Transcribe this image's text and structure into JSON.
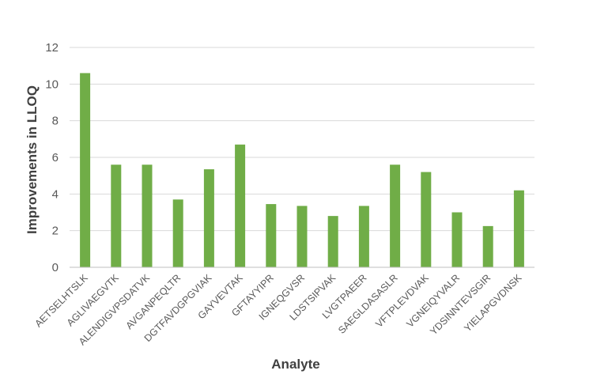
{
  "chart_data": {
    "type": "bar",
    "title": "",
    "xlabel": "Analyte",
    "ylabel": "Improvements in LLOQ",
    "ylim": [
      0,
      12
    ],
    "yticks": [
      0,
      2,
      4,
      6,
      8,
      10,
      12
    ],
    "grid": true,
    "legend": "none",
    "bar_color": "#70ad47",
    "categories": [
      "AETSELHTSLK",
      "AGLIVAEGVTK",
      "ALENDIGVPSDATVK",
      "AVGANPEQLTR",
      "DGTFAVDGPGVIAK",
      "GAYVEVTAK",
      "GFTAYYIPR",
      "IGNEQGVSR",
      "LDSTSIPVAK",
      "LVGTPAEER",
      "SAEGLDASASLR",
      "VFTPLEVDVAK",
      "VGNEIQYVALR",
      "YDSINNTEVSGIR",
      "YIELAPGVDNSK"
    ],
    "values": [
      10.6,
      5.6,
      5.6,
      3.7,
      5.35,
      6.7,
      3.45,
      3.35,
      2.8,
      3.35,
      5.6,
      5.2,
      3.0,
      2.25,
      4.2
    ]
  }
}
